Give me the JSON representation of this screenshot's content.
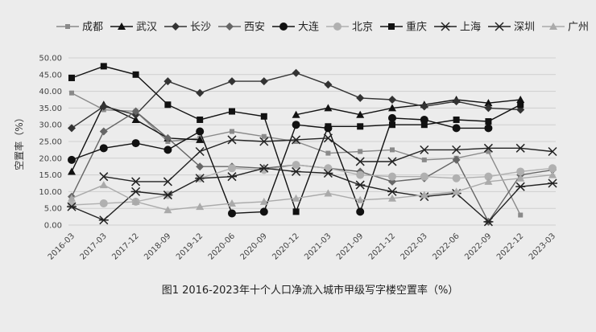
{
  "chart_data": {
    "type": "line",
    "caption": "图1 2016-2023年十个人口净流入城市甲级写字楼空置率（%）",
    "ylabel": "空置率（%）",
    "ylim": [
      0,
      50
    ],
    "yticks": [
      "0.00",
      "5.00",
      "10.00",
      "15.00",
      "20.00",
      "25.00",
      "30.00",
      "35.00",
      "40.00",
      "45.00",
      "50.00"
    ],
    "legend_position": "top",
    "categories": [
      "2016-03",
      "2017-03",
      "2017-12",
      "2018-09",
      "2019-12",
      "2020-06",
      "2020-09",
      "2020-12",
      "2021-03",
      "2021-09",
      "2021-12",
      "2022-03",
      "2022-06",
      "2022-09",
      "2022-12",
      "2023-03"
    ],
    "series": [
      {
        "name": "成都",
        "marker": "square-small",
        "color": "#8a8a8a",
        "values": [
          39.5,
          34.5,
          34,
          25,
          26,
          28,
          26.5,
          25,
          21.5,
          22,
          22.5,
          19.5,
          20,
          22,
          3,
          null
        ]
      },
      {
        "name": "武汉",
        "marker": "triangle",
        "color": "#111111",
        "values": [
          16,
          36,
          31.5,
          26,
          25.5,
          null,
          null,
          33,
          35,
          33,
          35,
          36,
          37.5,
          36.5,
          37.5,
          null
        ]
      },
      {
        "name": "长沙",
        "marker": "diamond",
        "color": "#333333",
        "values": [
          29,
          35.5,
          33,
          43,
          39.5,
          43,
          43,
          45.5,
          42,
          38,
          37.5,
          35.5,
          37,
          35,
          34.5,
          null
        ]
      },
      {
        "name": "西安",
        "marker": "diamond",
        "color": "#666666",
        "values": [
          8.5,
          28,
          34,
          26,
          17.5,
          17.5,
          17,
          18,
          17,
          16,
          13,
          14,
          19.5,
          1,
          15,
          16.5
        ]
      },
      {
        "name": "大连",
        "marker": "circle",
        "color": "#111111",
        "values": [
          19.5,
          23,
          24.5,
          22.5,
          28,
          3.5,
          4,
          30,
          29,
          4,
          32,
          31.5,
          29,
          29,
          null,
          null
        ]
      },
      {
        "name": "北京",
        "marker": "circle",
        "color": "#b0b0b0",
        "values": [
          6,
          6.5,
          7,
          9,
          14,
          17,
          16.5,
          18,
          17,
          15,
          14.5,
          14.5,
          14,
          14.5,
          16,
          17
        ]
      },
      {
        "name": "重庆",
        "marker": "square",
        "color": "#111111",
        "values": [
          44,
          47.5,
          45,
          36,
          31.5,
          34,
          32.5,
          4,
          29.5,
          29.5,
          30,
          30,
          31.5,
          31,
          36,
          null
        ]
      },
      {
        "name": "上海",
        "marker": "star",
        "color": "#222222",
        "values": [
          5.5,
          1.5,
          10,
          9,
          14,
          14.5,
          17,
          16,
          15.5,
          12,
          10,
          8.5,
          9.5,
          1,
          11.5,
          12.5
        ]
      },
      {
        "name": "深圳",
        "marker": "x",
        "color": "#222222",
        "values": [
          null,
          14.5,
          13,
          13,
          22,
          25.5,
          25,
          25.5,
          26,
          19,
          19,
          22.5,
          22.5,
          23,
          23,
          22
        ]
      },
      {
        "name": "广州",
        "marker": "triangle",
        "color": "#aaaaaa",
        "values": [
          8,
          12,
          7,
          4.5,
          5.5,
          6.5,
          7,
          8,
          9.5,
          7.5,
          8,
          9,
          10,
          13,
          14,
          15
        ]
      }
    ]
  }
}
